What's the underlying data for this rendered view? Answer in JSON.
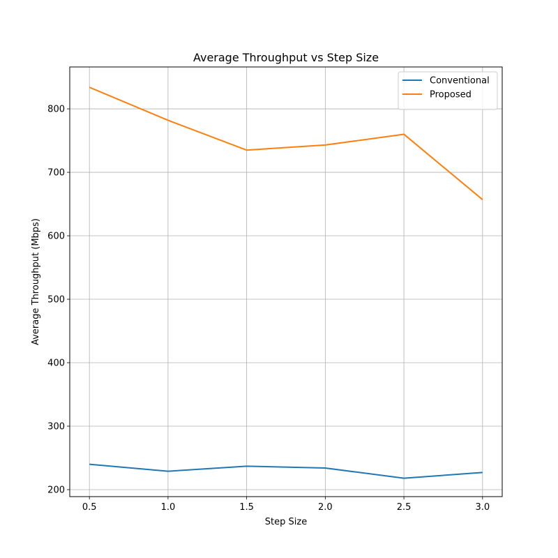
{
  "chart_data": {
    "type": "line",
    "title": "Average Throughput vs Step Size",
    "xlabel": "Step Size",
    "ylabel": "Average Throughput (Mbps)",
    "x": [
      0.5,
      1.0,
      1.5,
      2.0,
      2.5,
      3.0
    ],
    "xticks": [
      "0.5",
      "1.0",
      "1.5",
      "2.0",
      "2.5",
      "3.0"
    ],
    "yticks": [
      "200",
      "300",
      "400",
      "500",
      "600",
      "700",
      "800"
    ],
    "xlim": [
      0.375,
      3.125
    ],
    "ylim": [
      189,
      866
    ],
    "grid": true,
    "legend_position": "top-right",
    "series": [
      {
        "name": "Conventional",
        "color": "#1f77b4",
        "values": [
          240,
          229,
          237,
          234,
          218,
          227
        ]
      },
      {
        "name": "Proposed",
        "color": "#ff7f0e",
        "values": [
          834,
          782,
          735,
          743,
          760,
          657
        ]
      }
    ]
  }
}
